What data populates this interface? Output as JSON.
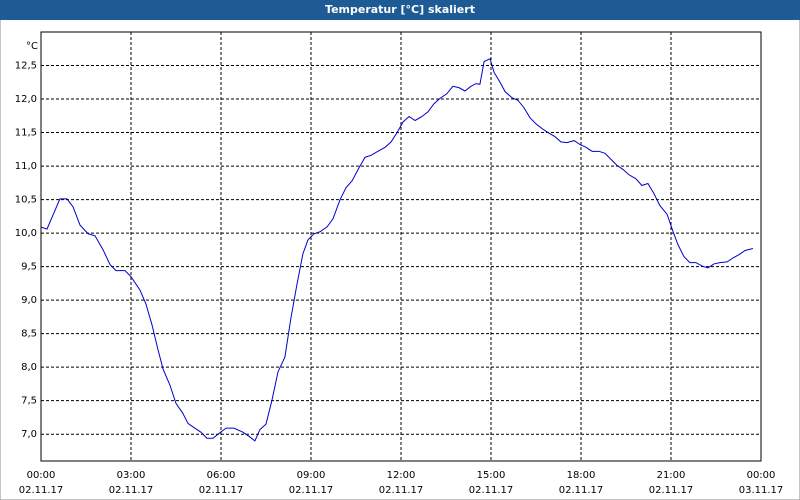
{
  "chart_data": {
    "type": "line",
    "title": "Temperatur [°C] skaliert",
    "unit": "°C",
    "x": [
      0,
      0.2,
      0.43,
      0.63,
      0.87,
      1.07,
      1.3,
      1.57,
      1.8,
      2.07,
      2.3,
      2.5,
      2.8,
      3.0,
      3.3,
      3.5,
      3.7,
      3.9,
      4.07,
      4.3,
      4.5,
      4.73,
      4.9,
      5.13,
      5.33,
      5.53,
      5.73,
      5.93,
      6.17,
      6.43,
      6.73,
      6.93,
      7.13,
      7.3,
      7.5,
      7.7,
      7.9,
      8.13,
      8.33,
      8.53,
      8.73,
      8.9,
      9.1,
      9.3,
      9.53,
      9.73,
      9.97,
      10.17,
      10.37,
      10.57,
      10.8,
      11.0,
      11.23,
      11.47,
      11.67,
      11.87,
      12.07,
      12.27,
      12.47,
      12.7,
      12.9,
      13.1,
      13.3,
      13.53,
      13.73,
      13.93,
      14.13,
      14.33,
      14.5,
      14.63,
      14.77,
      14.97,
      15.1,
      15.3,
      15.47,
      15.7,
      15.9,
      16.1,
      16.3,
      16.5,
      16.7,
      16.9,
      17.13,
      17.33,
      17.53,
      17.77,
      17.97,
      18.17,
      18.37,
      18.6,
      18.8,
      19.0,
      19.2,
      19.4,
      19.6,
      19.83,
      20.03,
      20.23,
      20.43,
      20.63,
      20.87,
      21.07,
      21.23,
      21.43,
      21.63,
      21.83,
      22.03,
      22.23,
      22.43,
      22.63,
      22.87,
      23.07,
      23.27,
      23.47,
      23.73
    ],
    "series": [
      {
        "name": "Temperatur",
        "color": "#0000cc",
        "values": [
          10.09,
          10.06,
          10.3,
          10.51,
          10.51,
          10.39,
          10.12,
          9.99,
          9.96,
          9.75,
          9.53,
          9.44,
          9.44,
          9.35,
          9.15,
          8.94,
          8.63,
          8.26,
          7.97,
          7.73,
          7.46,
          7.31,
          7.16,
          7.09,
          7.03,
          6.94,
          6.94,
          7.01,
          7.09,
          7.09,
          7.03,
          6.97,
          6.9,
          7.07,
          7.15,
          7.51,
          7.93,
          8.15,
          8.73,
          9.23,
          9.69,
          9.9,
          9.99,
          10.02,
          10.09,
          10.21,
          10.5,
          10.68,
          10.78,
          10.95,
          11.13,
          11.16,
          11.22,
          11.28,
          11.36,
          11.5,
          11.66,
          11.74,
          11.68,
          11.74,
          11.81,
          11.93,
          12.01,
          12.08,
          12.19,
          12.17,
          12.12,
          12.19,
          12.23,
          12.22,
          12.56,
          12.6,
          12.4,
          12.25,
          12.11,
          12.02,
          11.98,
          11.87,
          11.72,
          11.63,
          11.56,
          11.5,
          11.44,
          11.36,
          11.35,
          11.38,
          11.32,
          11.28,
          11.22,
          11.22,
          11.19,
          11.1,
          11.01,
          10.95,
          10.87,
          10.81,
          10.71,
          10.74,
          10.59,
          10.41,
          10.28,
          10.02,
          9.83,
          9.65,
          9.56,
          9.56,
          9.51,
          9.48,
          9.54,
          9.56,
          9.57,
          9.63,
          9.68,
          9.74,
          9.77
        ]
      }
    ],
    "xlim": [
      0,
      24
    ],
    "ylim": [
      6.6,
      13.0
    ],
    "xticks": [
      {
        "value": 0,
        "label": "00:00",
        "date": "02.11.17"
      },
      {
        "value": 3,
        "label": "03:00",
        "date": "02.11.17"
      },
      {
        "value": 6,
        "label": "06:00",
        "date": "02.11.17"
      },
      {
        "value": 9,
        "label": "09:00",
        "date": "02.11.17"
      },
      {
        "value": 12,
        "label": "12:00",
        "date": "02.11.17"
      },
      {
        "value": 15,
        "label": "15:00",
        "date": "02.11.17"
      },
      {
        "value": 18,
        "label": "18:00",
        "date": "02.11.17"
      },
      {
        "value": 21,
        "label": "21:00",
        "date": "02.11.17"
      },
      {
        "value": 24,
        "label": "00:00",
        "date": "03.11.17"
      }
    ],
    "yticks": [
      {
        "value": 7.0,
        "label": "7,0"
      },
      {
        "value": 7.5,
        "label": "7,5"
      },
      {
        "value": 8.0,
        "label": "8,0"
      },
      {
        "value": 8.5,
        "label": "8,5"
      },
      {
        "value": 9.0,
        "label": "9,0"
      },
      {
        "value": 9.5,
        "label": "9,5"
      },
      {
        "value": 10.0,
        "label": "10,0"
      },
      {
        "value": 10.5,
        "label": "10,5"
      },
      {
        "value": 11.0,
        "label": "11,0"
      },
      {
        "value": 11.5,
        "label": "11,5"
      },
      {
        "value": 12.0,
        "label": "12,0"
      },
      {
        "value": 12.5,
        "label": "12,5"
      }
    ],
    "grid": true
  }
}
